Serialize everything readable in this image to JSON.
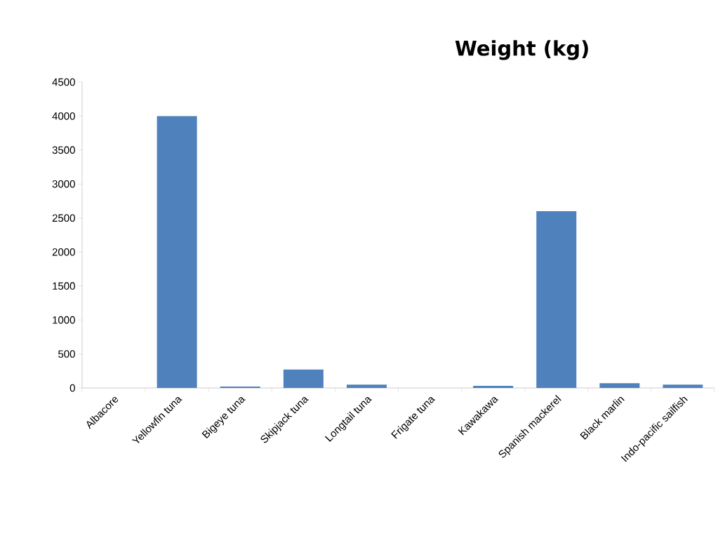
{
  "chart_data": {
    "type": "bar",
    "title": "Weight (kg)",
    "categories": [
      "Albacore",
      "Yellowfin tuna",
      "Bigeye tuna",
      "Skipjack tuna",
      "Longtail tuna",
      "Frigate tuna",
      "Kawakawa",
      "Spanish mackerel",
      "Black marlin",
      "Indo-pacific sailfish"
    ],
    "values": [
      0,
      4000,
      20,
      270,
      50,
      0,
      30,
      2600,
      70,
      50
    ],
    "color": "#4f81bd",
    "ylim": [
      0,
      4500
    ],
    "yticks": [
      0,
      500,
      1000,
      1500,
      2000,
      2500,
      3000,
      3500,
      4000,
      4500
    ],
    "grid": false
  }
}
